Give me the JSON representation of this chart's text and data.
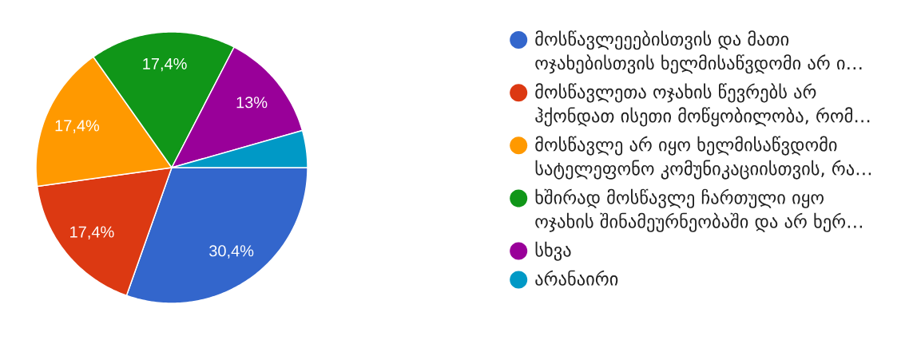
{
  "chart_data": {
    "type": "pie",
    "categories": [
      "მოსწავლეეებისთვის და მათი ოჯახებისთვის ხელმისაწვდომი არ ი…",
      "მოსწავლეთა ოჯახის წევრებს არ ჰქონდათ ისეთი მოწყობილობა, რომ…",
      "მოსწავლე არ იყო ხელმისაწვდომი სატელეფონო კომუნიკაციისთვის, რა…",
      "ხშირად მოსწავლე ჩართული იყო ოჯახის შინამეურნეობაში და არ ხერ…",
      "სხვა",
      "არანაირი"
    ],
    "values": [
      30.4,
      17.4,
      17.4,
      17.4,
      13,
      4.4
    ],
    "colors": [
      "#3366cc",
      "#dc3912",
      "#ff9900",
      "#109618",
      "#990099",
      "#0099c6"
    ],
    "value_labels": [
      "30,4%",
      "17,4%",
      "17,4%",
      "17,4%",
      "13%",
      null
    ],
    "legend": "right"
  }
}
